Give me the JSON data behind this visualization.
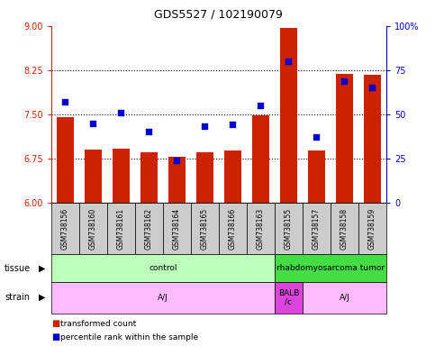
{
  "title": "GDS5527 / 102190079",
  "samples": [
    "GSM738156",
    "GSM738160",
    "GSM738161",
    "GSM738162",
    "GSM738164",
    "GSM738165",
    "GSM738166",
    "GSM738163",
    "GSM738155",
    "GSM738157",
    "GSM738158",
    "GSM738159"
  ],
  "transformed_count": [
    7.45,
    6.9,
    6.92,
    6.85,
    6.78,
    6.85,
    6.88,
    7.48,
    8.97,
    6.88,
    8.18,
    8.17
  ],
  "percentile_rank": [
    57,
    45,
    51,
    40,
    24,
    43,
    44,
    55,
    80,
    37,
    69,
    65
  ],
  "ylim_left": [
    6,
    9
  ],
  "ylim_right": [
    0,
    100
  ],
  "yticks_left": [
    6,
    6.75,
    7.5,
    8.25,
    9
  ],
  "yticks_right": [
    0,
    25,
    50,
    75,
    100
  ],
  "hlines": [
    6.75,
    7.5,
    8.25
  ],
  "bar_color": "#cc2200",
  "dot_color": "#0000cc",
  "bar_width": 0.6,
  "tissue_groups": [
    {
      "label": "control",
      "start": 0,
      "end": 8,
      "color": "#bbffbb"
    },
    {
      "label": "rhabdomyosarcoma tumor",
      "start": 8,
      "end": 12,
      "color": "#44dd44"
    }
  ],
  "strain_groups": [
    {
      "label": "A/J",
      "start": 0,
      "end": 8,
      "color": "#ffbbff"
    },
    {
      "label": "BALB\n/c",
      "start": 8,
      "end": 9,
      "color": "#dd44dd"
    },
    {
      "label": "A/J",
      "start": 9,
      "end": 12,
      "color": "#ffbbff"
    }
  ],
  "legend_bar_color": "#cc2200",
  "legend_dot_color": "#0000cc",
  "legend_bar_label": "transformed count",
  "legend_dot_label": "percentile rank within the sample",
  "left_tick_color": "#cc2200",
  "right_tick_color": "#0000cc",
  "background_color": "#ffffff",
  "grid_color": "#000000",
  "tick_label_area_color": "#cccccc"
}
